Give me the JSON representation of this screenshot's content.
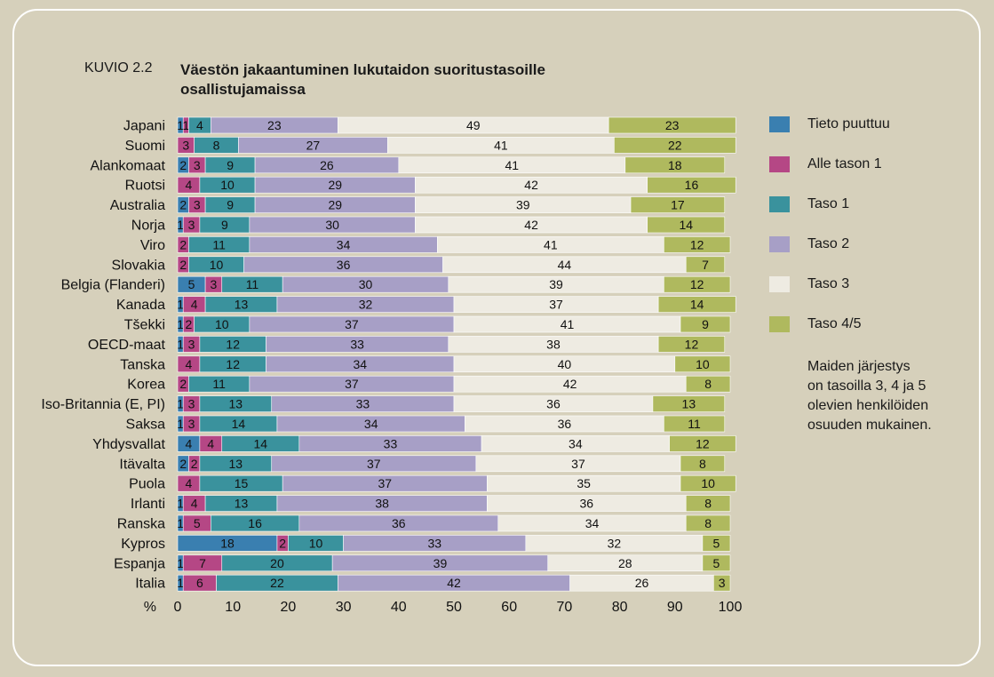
{
  "figure": {
    "label": "KUVIO 2.2",
    "title": "Väestön jakaantuminen lukutaidon suoritustasoille osallistujamaissa",
    "note": "Maiden järjestys\non tasoilla 3, 4 ja 5\nolevien henkilöiden\nosuuden mukainen."
  },
  "chart_data": {
    "type": "bar",
    "orientation": "horizontal",
    "stacked": true,
    "title": "Väestön jakaantuminen lukutaidon suoritustasoille osallistujamaissa",
    "xlabel": "%",
    "xlim": [
      0,
      100
    ],
    "xticks": [
      0,
      10,
      20,
      30,
      40,
      50,
      60,
      70,
      80,
      90,
      100
    ],
    "legend_position": "right",
    "categories": [
      "Japani",
      "Suomi",
      "Alankomaat",
      "Ruotsi",
      "Australia",
      "Norja",
      "Viro",
      "Slovakia",
      "Belgia (Flanderi)",
      "Kanada",
      "Tšekki",
      "OECD-maat",
      "Tanska",
      "Korea",
      "Iso-Britannia (E, PI)",
      "Saksa",
      "Yhdysvallat",
      "Itävalta",
      "Puola",
      "Irlanti",
      "Ranska",
      "Kypros",
      "Espanja",
      "Italia"
    ],
    "series": [
      {
        "name": "Tieto puuttuu",
        "color": "#3a7fb0",
        "values": [
          1,
          0,
          2,
          0,
          2,
          1,
          0,
          0,
          5,
          1,
          1,
          1,
          0,
          0,
          1,
          1,
          4,
          2,
          0,
          1,
          1,
          18,
          1,
          1
        ]
      },
      {
        "name": "Alle tason 1",
        "color": "#b54785",
        "values": [
          1,
          3,
          3,
          4,
          3,
          3,
          2,
          2,
          3,
          4,
          2,
          3,
          4,
          2,
          3,
          3,
          4,
          2,
          4,
          4,
          5,
          2,
          7,
          6
        ]
      },
      {
        "name": "Taso 1",
        "color": "#3a929d",
        "values": [
          4,
          8,
          9,
          10,
          9,
          9,
          11,
          10,
          11,
          13,
          10,
          12,
          12,
          11,
          13,
          14,
          14,
          13,
          15,
          13,
          16,
          10,
          20,
          22
        ]
      },
      {
        "name": "Taso 2",
        "color": "#a79fc6",
        "values": [
          23,
          27,
          26,
          29,
          29,
          30,
          34,
          36,
          30,
          32,
          37,
          33,
          34,
          37,
          33,
          34,
          33,
          37,
          37,
          38,
          36,
          33,
          39,
          42
        ]
      },
      {
        "name": "Taso 3",
        "color": "#eeebe2",
        "values": [
          49,
          41,
          41,
          42,
          39,
          42,
          41,
          44,
          39,
          37,
          41,
          38,
          40,
          42,
          36,
          36,
          34,
          37,
          35,
          36,
          34,
          32,
          28,
          26
        ]
      },
      {
        "name": "Taso 4/5",
        "color": "#afb95e",
        "values": [
          23,
          22,
          18,
          16,
          17,
          14,
          12,
          7,
          12,
          14,
          9,
          12,
          10,
          8,
          13,
          11,
          12,
          8,
          10,
          8,
          8,
          5,
          5,
          3
        ]
      }
    ]
  }
}
